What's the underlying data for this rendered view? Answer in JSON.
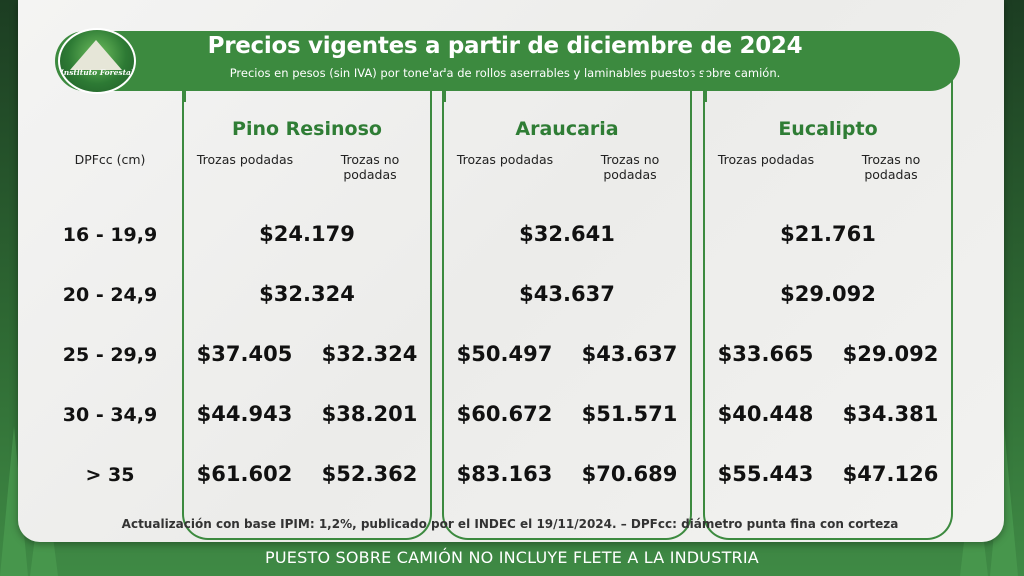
{
  "header": {
    "title": "Precios vigentes a partir de diciembre de 2024",
    "subtitle": "Precios en pesos (sin IVA) por tonelada de rollos aserrables y laminables puestos sobre camión.",
    "logo_text": "Instituto Forestal"
  },
  "table": {
    "row_header": "DPFcc (cm)",
    "subheaders": [
      "Trozas podadas",
      "Trozas no podadas"
    ],
    "species": [
      {
        "name": "Pino Resinoso",
        "rows": [
          [
            "$24.179"
          ],
          [
            "$32.324"
          ],
          [
            "$37.405",
            "$32.324"
          ],
          [
            "$44.943",
            "$38.201"
          ],
          [
            "$61.602",
            "$52.362"
          ]
        ]
      },
      {
        "name": "Araucaria",
        "rows": [
          [
            "$32.641"
          ],
          [
            "$43.637"
          ],
          [
            "$50.497",
            "$43.637"
          ],
          [
            "$60.672",
            "$51.571"
          ],
          [
            "$83.163",
            "$70.689"
          ]
        ]
      },
      {
        "name": "Eucalipto",
        "rows": [
          [
            "$21.761"
          ],
          [
            "$29.092"
          ],
          [
            "$33.665",
            "$29.092"
          ],
          [
            "$40.448",
            "$34.381"
          ],
          [
            "$55.443",
            "$47.126"
          ]
        ]
      }
    ],
    "row_labels": [
      "16 - 19,9",
      "20 - 24,9",
      "25 - 29,9",
      "30 - 34,9",
      "> 35"
    ]
  },
  "footnote": "Actualización con base IPIM: 1,2%, publicado por el INDEC el 19/11/2024.  –  DPFcc: diámetro punta fina con corteza",
  "banner": "PUESTO SOBRE CAMIÓN NO INCLUYE FLETE A LA INDUSTRIA",
  "colors": {
    "accent": "#3c8a3f",
    "species_text": "#2f7d35"
  }
}
